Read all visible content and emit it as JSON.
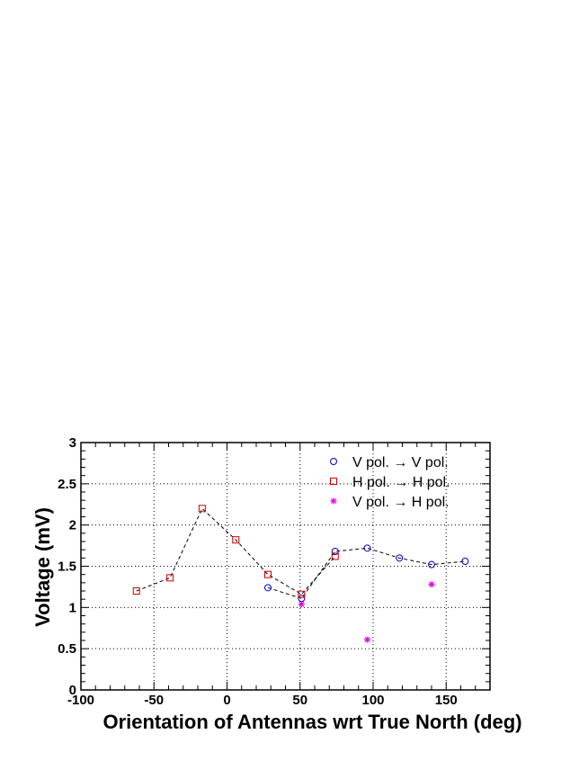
{
  "chart_data": {
    "type": "scatter",
    "title": "",
    "xlabel": "Orientation of Antennas wrt True North (deg)",
    "ylabel": "Voltage (mV)",
    "xlim": [
      -100,
      180
    ],
    "ylim": [
      0,
      3
    ],
    "x_ticks": [
      -100,
      -50,
      0,
      50,
      100,
      150
    ],
    "x_tick_labels": [
      "-100",
      "-50",
      "0",
      "50",
      "100",
      "150"
    ],
    "y_ticks": [
      0,
      0.5,
      1,
      1.5,
      2,
      2.5,
      3
    ],
    "y_tick_labels": [
      "0",
      "0.5",
      "1",
      "1.5",
      "2",
      "2.5",
      "3"
    ],
    "grid": true,
    "legend_position": "top-right",
    "series": [
      {
        "name": "V pol. → V pol.",
        "marker": "circle",
        "color": "#0000cc",
        "connected": true,
        "x": [
          28,
          51,
          74,
          96,
          118,
          140,
          163
        ],
        "y": [
          1.24,
          1.11,
          1.68,
          1.72,
          1.6,
          1.52,
          1.56
        ]
      },
      {
        "name": "H pol. → H pol.",
        "marker": "square",
        "color": "#cc0000",
        "connected": true,
        "x": [
          -62,
          -39,
          -17,
          6,
          28,
          51,
          74
        ],
        "y": [
          1.2,
          1.36,
          2.2,
          1.82,
          1.4,
          1.16,
          1.62
        ]
      },
      {
        "name": "V pol. → H pol.",
        "marker": "star",
        "color": "#ee00ee",
        "connected": false,
        "x": [
          51,
          96,
          140
        ],
        "y": [
          1.04,
          0.61,
          1.28
        ]
      }
    ]
  }
}
